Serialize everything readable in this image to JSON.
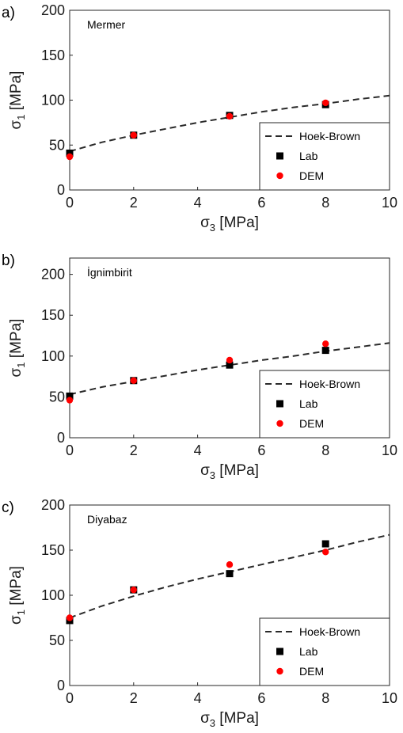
{
  "chart_data": [
    {
      "type": "scatter",
      "panel": "a)",
      "title": "Mermer",
      "xlabel": "σ3 [MPa]",
      "ylabel": "σ1 [MPa]",
      "xlim": [
        0,
        10
      ],
      "ylim": [
        0,
        200
      ],
      "xticks": [
        0,
        2,
        4,
        6,
        8,
        10
      ],
      "yticks": [
        0,
        50,
        100,
        150,
        200
      ],
      "legend_position": "bottom-right",
      "series": [
        {
          "name": "Hoek-Brown",
          "kind": "dashed-line",
          "color": "#2a2a2a",
          "x": [
            0,
            1,
            2,
            3,
            4,
            5,
            6,
            7,
            8,
            9,
            10
          ],
          "y": [
            43,
            53,
            61,
            68,
            75,
            81,
            87,
            92,
            96,
            101,
            105
          ]
        },
        {
          "name": "Lab",
          "kind": "square-marker",
          "color": "#000000",
          "x": [
            0,
            2,
            5,
            8
          ],
          "y": [
            41,
            61,
            83,
            95
          ]
        },
        {
          "name": "DEM",
          "kind": "circle-marker",
          "color": "#ff0000",
          "x": [
            0,
            2,
            5,
            8
          ],
          "y": [
            37,
            61,
            82,
            97
          ]
        }
      ]
    },
    {
      "type": "scatter",
      "panel": "b)",
      "title": "İgnimbirit",
      "xlabel": "σ3 [MPa]",
      "ylabel": "σ1 [MPa]",
      "xlim": [
        0,
        10
      ],
      "ylim": [
        0,
        220
      ],
      "xticks": [
        0,
        2,
        4,
        6,
        8,
        10
      ],
      "yticks": [
        0,
        50,
        100,
        150,
        200
      ],
      "legend_position": "bottom-right",
      "series": [
        {
          "name": "Hoek-Brown",
          "kind": "dashed-line",
          "color": "#2a2a2a",
          "x": [
            0,
            1,
            2,
            3,
            4,
            5,
            6,
            7,
            8,
            9,
            10
          ],
          "y": [
            53,
            62,
            69,
            76,
            83,
            89,
            95,
            100,
            106,
            111,
            116
          ]
        },
        {
          "name": "Lab",
          "kind": "square-marker",
          "color": "#000000",
          "x": [
            0,
            2,
            5,
            8
          ],
          "y": [
            51,
            70,
            89,
            107
          ]
        },
        {
          "name": "DEM",
          "kind": "circle-marker",
          "color": "#ff0000",
          "x": [
            0,
            2,
            5,
            8
          ],
          "y": [
            46,
            70,
            95,
            115
          ]
        }
      ]
    },
    {
      "type": "scatter",
      "panel": "c)",
      "title": "Diyabaz",
      "xlabel": "σ3 [MPa]",
      "ylabel": "σ1 [MPa]",
      "xlim": [
        0,
        10
      ],
      "ylim": [
        0,
        200
      ],
      "xticks": [
        0,
        2,
        4,
        6,
        8,
        10
      ],
      "yticks": [
        0,
        50,
        100,
        150,
        200
      ],
      "legend_position": "bottom-right",
      "series": [
        {
          "name": "Hoek-Brown",
          "kind": "dashed-line",
          "color": "#2a2a2a",
          "x": [
            0,
            1,
            2,
            3,
            4,
            5,
            6,
            7,
            8,
            9,
            10
          ],
          "y": [
            75,
            88,
            99,
            109,
            118,
            126,
            134,
            142,
            150,
            159,
            167
          ]
        },
        {
          "name": "Lab",
          "kind": "square-marker",
          "color": "#000000",
          "x": [
            0,
            2,
            5,
            8
          ],
          "y": [
            72,
            106,
            124,
            157
          ]
        },
        {
          "name": "DEM",
          "kind": "circle-marker",
          "color": "#ff0000",
          "x": [
            0,
            2,
            5,
            8
          ],
          "y": [
            75,
            106,
            134,
            148
          ]
        }
      ]
    }
  ]
}
